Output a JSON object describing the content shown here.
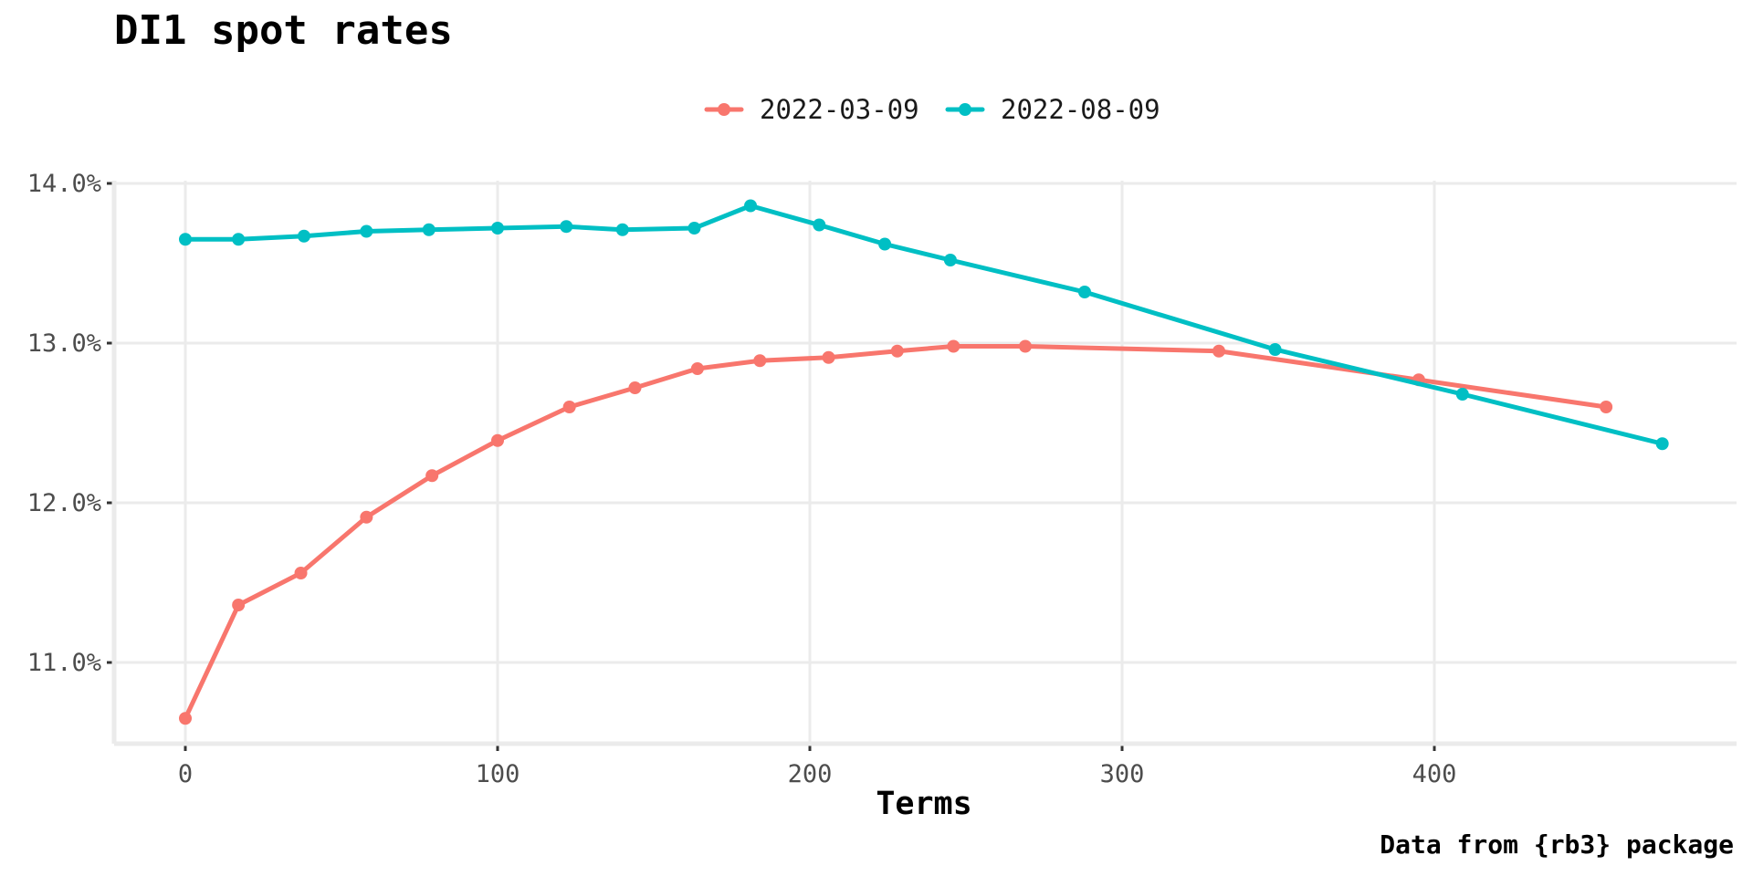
{
  "chart_data": {
    "type": "line",
    "title": "DI1 spot rates",
    "xlabel": "Terms",
    "ylabel": "",
    "caption": "Data from {rb3} package",
    "xlim": [
      -22,
      497
    ],
    "ylim": [
      10.5,
      14.0
    ],
    "grid": true,
    "legend_position": "top",
    "x_ticks": [
      0,
      100,
      200,
      300,
      400
    ],
    "x_tick_labels": [
      "0",
      "100",
      "200",
      "300",
      "400"
    ],
    "y_ticks": [
      11.0,
      12.0,
      13.0,
      14.0
    ],
    "y_tick_labels": [
      "11.0%",
      "12.0%",
      "13.0%",
      "14.0%"
    ],
    "series": [
      {
        "name": "2022-03-09",
        "color": "#F8766D",
        "x": [
          0,
          17,
          37,
          58,
          79,
          100,
          123,
          144,
          164,
          184,
          206,
          228,
          246,
          269,
          331,
          395,
          455
        ],
        "y": [
          10.65,
          11.36,
          11.56,
          11.91,
          12.17,
          12.39,
          12.6,
          12.72,
          12.84,
          12.89,
          12.91,
          12.95,
          12.98,
          12.98,
          12.95,
          12.77,
          12.6
        ]
      },
      {
        "name": "2022-08-09",
        "color": "#00BFC4",
        "x": [
          0,
          17,
          38,
          58,
          78,
          100,
          122,
          140,
          163,
          181,
          203,
          224,
          245,
          288,
          349,
          409,
          473
        ],
        "y": [
          13.65,
          13.65,
          13.67,
          13.7,
          13.71,
          13.72,
          13.73,
          13.71,
          13.72,
          13.86,
          13.74,
          13.62,
          13.52,
          13.32,
          12.96,
          12.68,
          12.37
        ]
      }
    ]
  }
}
